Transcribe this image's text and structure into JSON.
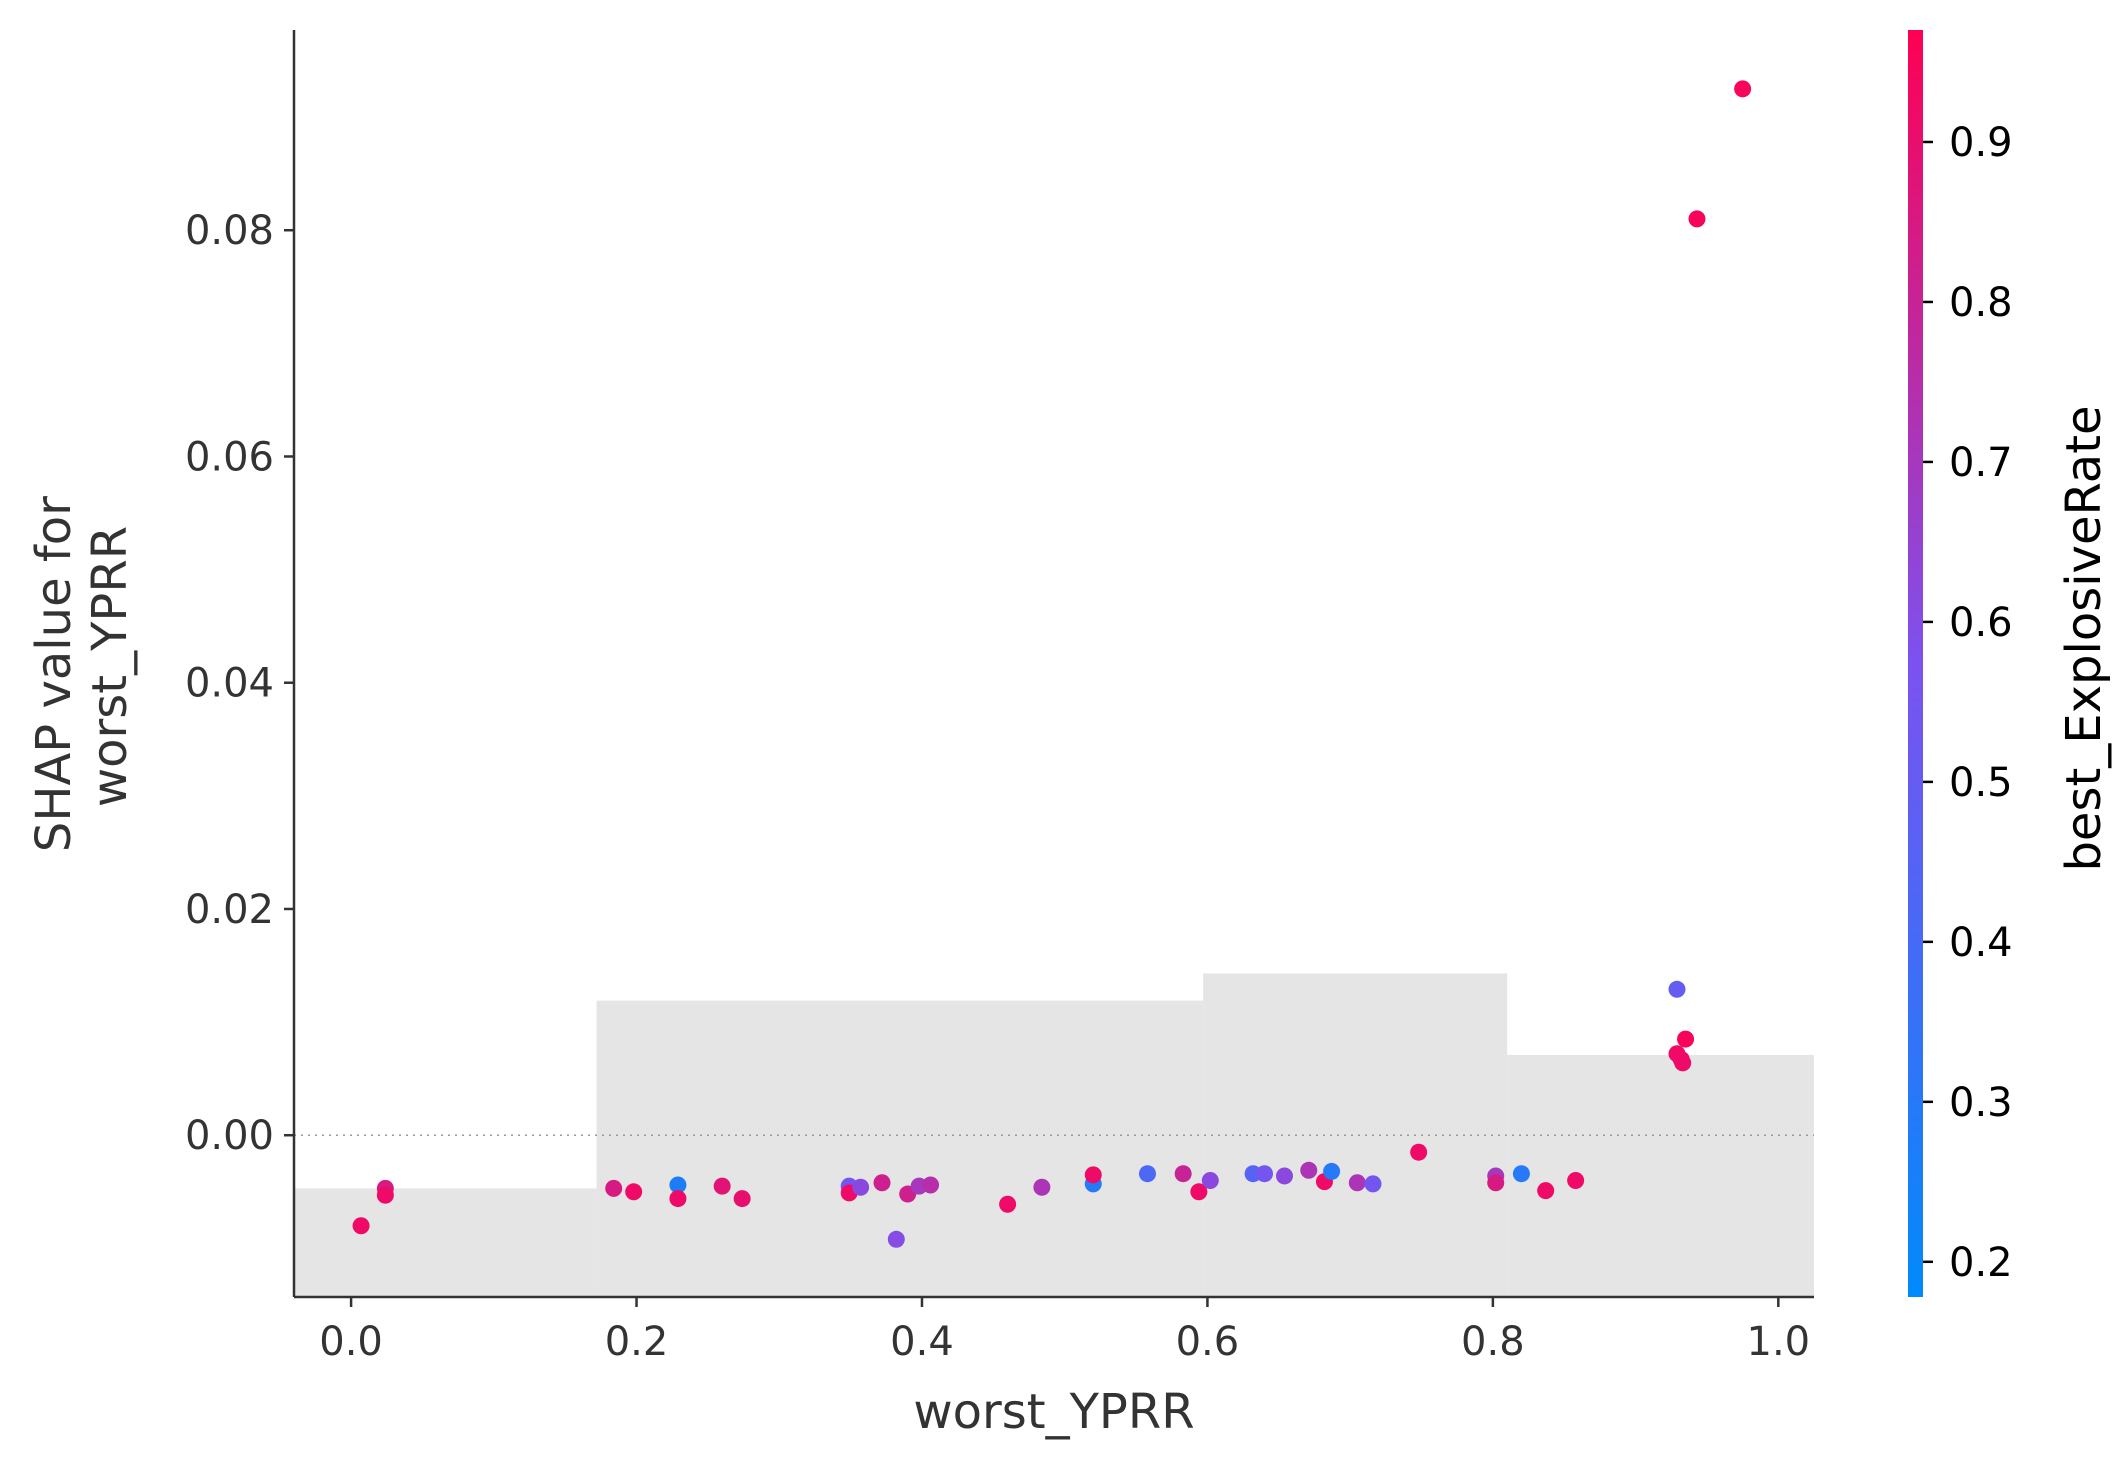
{
  "chart_data": {
    "type": "scatter",
    "xlabel": "worst_YPRR",
    "ylabel_lines": [
      "SHAP value for",
      "worst_YPRR"
    ],
    "xlim": [
      -0.04,
      1.025
    ],
    "ylim": [
      -0.0143,
      0.0977
    ],
    "xticks": [
      0.0,
      0.2,
      0.4,
      0.6,
      0.8,
      1.0
    ],
    "xtick_labels": [
      "0.0",
      "0.2",
      "0.4",
      "0.6",
      "0.8",
      "1.0"
    ],
    "yticks": [
      0.0,
      0.02,
      0.04,
      0.06,
      0.08
    ],
    "ytick_labels": [
      "0.00",
      "0.02",
      "0.04",
      "0.06",
      "0.08"
    ],
    "zero_line": true,
    "grid": false,
    "histogram_background": {
      "color": "#e5e5e5",
      "bins": [
        {
          "x0": -0.04,
          "x1": 0.172,
          "top": -0.0047
        },
        {
          "x0": 0.172,
          "x1": 0.597,
          "top": 0.0119
        },
        {
          "x0": 0.597,
          "x1": 0.81,
          "top": 0.0143
        },
        {
          "x0": 0.81,
          "x1": 1.025,
          "top": 0.0071
        }
      ]
    },
    "colorbar": {
      "label": "best_ExplosiveRate",
      "range": [
        0.178,
        0.97
      ],
      "ticks": [
        0.2,
        0.3,
        0.4,
        0.5,
        0.6,
        0.7,
        0.8,
        0.9
      ],
      "tick_labels": [
        "0.2",
        "0.3",
        "0.4",
        "0.5",
        "0.6",
        "0.7",
        "0.8",
        "0.9"
      ],
      "color_low": "#008afb",
      "color_mid": "#7c52f0",
      "color_high": "#ff0052"
    },
    "points": [
      {
        "x": 0.007,
        "y": -0.008,
        "c": 0.92
      },
      {
        "x": 0.024,
        "y": -0.0047,
        "c": 0.85
      },
      {
        "x": 0.024,
        "y": -0.0053,
        "c": 0.92
      },
      {
        "x": 0.184,
        "y": -0.0047,
        "c": 0.85
      },
      {
        "x": 0.198,
        "y": -0.005,
        "c": 0.92
      },
      {
        "x": 0.229,
        "y": -0.0044,
        "c": 0.27
      },
      {
        "x": 0.229,
        "y": -0.0056,
        "c": 0.92
      },
      {
        "x": 0.26,
        "y": -0.0045,
        "c": 0.88
      },
      {
        "x": 0.274,
        "y": -0.0056,
        "c": 0.9
      },
      {
        "x": 0.349,
        "y": -0.0045,
        "c": 0.55
      },
      {
        "x": 0.349,
        "y": -0.0051,
        "c": 0.92
      },
      {
        "x": 0.357,
        "y": -0.0046,
        "c": 0.62
      },
      {
        "x": 0.372,
        "y": -0.0042,
        "c": 0.82
      },
      {
        "x": 0.382,
        "y": -0.0092,
        "c": 0.6
      },
      {
        "x": 0.39,
        "y": -0.0052,
        "c": 0.82
      },
      {
        "x": 0.398,
        "y": -0.0045,
        "c": 0.7
      },
      {
        "x": 0.406,
        "y": -0.0044,
        "c": 0.75
      },
      {
        "x": 0.46,
        "y": -0.0061,
        "c": 0.92
      },
      {
        "x": 0.484,
        "y": -0.0046,
        "c": 0.72
      },
      {
        "x": 0.52,
        "y": -0.0043,
        "c": 0.3
      },
      {
        "x": 0.52,
        "y": -0.0035,
        "c": 0.92
      },
      {
        "x": 0.558,
        "y": -0.0034,
        "c": 0.42
      },
      {
        "x": 0.583,
        "y": -0.0034,
        "c": 0.8
      },
      {
        "x": 0.594,
        "y": -0.005,
        "c": 0.92
      },
      {
        "x": 0.602,
        "y": -0.004,
        "c": 0.62
      },
      {
        "x": 0.632,
        "y": -0.0034,
        "c": 0.45
      },
      {
        "x": 0.64,
        "y": -0.0034,
        "c": 0.55
      },
      {
        "x": 0.654,
        "y": -0.0036,
        "c": 0.62
      },
      {
        "x": 0.671,
        "y": -0.0031,
        "c": 0.72
      },
      {
        "x": 0.682,
        "y": -0.0041,
        "c": 0.92
      },
      {
        "x": 0.687,
        "y": -0.0032,
        "c": 0.3
      },
      {
        "x": 0.705,
        "y": -0.0042,
        "c": 0.72
      },
      {
        "x": 0.716,
        "y": -0.0043,
        "c": 0.55
      },
      {
        "x": 0.748,
        "y": -0.0015,
        "c": 0.92
      },
      {
        "x": 0.802,
        "y": -0.0036,
        "c": 0.7
      },
      {
        "x": 0.802,
        "y": -0.0042,
        "c": 0.85
      },
      {
        "x": 0.82,
        "y": -0.0034,
        "c": 0.3
      },
      {
        "x": 0.837,
        "y": -0.0049,
        "c": 0.92
      },
      {
        "x": 0.858,
        "y": -0.004,
        "c": 0.92
      },
      {
        "x": 0.929,
        "y": 0.0129,
        "c": 0.5
      },
      {
        "x": 0.929,
        "y": 0.0072,
        "c": 0.92
      },
      {
        "x": 0.932,
        "y": 0.0067,
        "c": 0.92
      },
      {
        "x": 0.933,
        "y": 0.0064,
        "c": 0.92
      },
      {
        "x": 0.935,
        "y": 0.0085,
        "c": 0.95
      },
      {
        "x": 0.943,
        "y": 0.081,
        "c": 0.95
      },
      {
        "x": 0.975,
        "y": 0.0925,
        "c": 0.95
      }
    ]
  }
}
